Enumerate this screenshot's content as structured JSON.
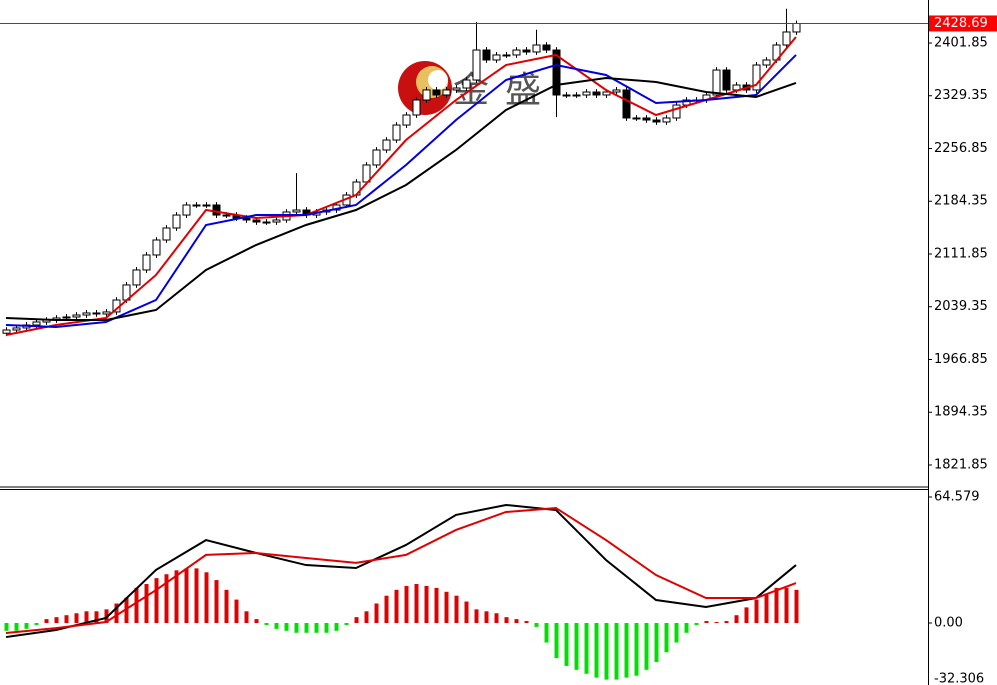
{
  "chart_data": [
    {
      "type": "candlestick",
      "watermark": "金盛",
      "open": [
        2003.0,
        2007.4,
        2010.2,
        2014.3,
        2018.4,
        2021.1,
        2023.9,
        2025.3,
        2028.0,
        2030.8,
        2029.4,
        2032.2,
        2048.6,
        2069.3,
        2089.9,
        2110.5,
        2131.1,
        2147.6,
        2165.4,
        2179.2,
        2179.2,
        2179.2,
        2165.4,
        2165.4,
        2161.3,
        2158.6,
        2155.8,
        2155.8,
        2158.6,
        2169.6,
        2172.3,
        2165.4,
        2169.6,
        2172.3,
        2179.2,
        2192.9,
        2210.8,
        2234.2,
        2254.8,
        2268.5,
        2289.1,
        2302.9,
        2323.5,
        2337.3,
        2330.4,
        2337.3,
        2340.0,
        2351.0,
        2392.2,
        2378.5,
        2385.4,
        2385.4,
        2392.2,
        2389.5,
        2399.1,
        2392.2,
        2330.4,
        2330.4,
        2330.4,
        2334.5,
        2330.4,
        2334.5,
        2337.3,
        2298.8,
        2298.8,
        2296.0,
        2293.3,
        2298.8,
        2316.6,
        2323.5,
        2323.5,
        2330.4,
        2364.7,
        2337.3,
        2344.1,
        2337.3,
        2371.6,
        2378.5,
        2399.1,
        2417.0
      ],
      "high": [
        2011.4,
        2014.2,
        2018.3,
        2022.4,
        2025.1,
        2027.9,
        2029.3,
        2032.0,
        2034.8,
        2034.8,
        2036.2,
        2052.6,
        2073.3,
        2093.9,
        2114.5,
        2135.1,
        2151.6,
        2169.4,
        2183.2,
        2183.2,
        2183.2,
        2183.2,
        2169.4,
        2169.4,
        2165.3,
        2162.6,
        2159.8,
        2162.6,
        2173.6,
        2223.0,
        2176.3,
        2173.6,
        2176.3,
        2183.2,
        2196.9,
        2214.8,
        2238.2,
        2258.8,
        2272.5,
        2293.1,
        2306.9,
        2327.5,
        2341.3,
        2341.3,
        2341.3,
        2344.0,
        2355.0,
        2430.7,
        2396.2,
        2389.4,
        2389.4,
        2396.2,
        2396.2,
        2420.0,
        2403.1,
        2396.2,
        2334.4,
        2334.4,
        2338.5,
        2338.5,
        2338.5,
        2341.3,
        2341.3,
        2302.8,
        2302.8,
        2300.0,
        2302.8,
        2320.6,
        2327.5,
        2327.5,
        2334.4,
        2368.7,
        2368.7,
        2348.1,
        2348.1,
        2375.6,
        2382.5,
        2403.1,
        2449.0,
        2432.7
      ],
      "low": [
        1999.0,
        2003.4,
        2006.2,
        2010.3,
        2014.4,
        2017.1,
        2019.9,
        2021.3,
        2024.0,
        2025.4,
        2025.4,
        2028.2,
        2044.6,
        2065.3,
        2085.9,
        2106.5,
        2127.1,
        2143.6,
        2161.4,
        2175.2,
        2175.2,
        2161.4,
        2161.4,
        2157.3,
        2154.6,
        2151.8,
        2151.8,
        2151.8,
        2154.6,
        2165.6,
        2161.4,
        2161.4,
        2165.6,
        2168.3,
        2175.2,
        2188.9,
        2206.8,
        2230.2,
        2250.8,
        2264.5,
        2285.1,
        2298.9,
        2319.5,
        2326.4,
        2326.4,
        2333.3,
        2336.0,
        2347.0,
        2374.5,
        2374.5,
        2381.4,
        2381.4,
        2385.5,
        2385.5,
        2388.2,
        2300.0,
        2326.4,
        2326.4,
        2326.4,
        2326.4,
        2326.4,
        2330.5,
        2294.8,
        2294.8,
        2292.0,
        2289.3,
        2289.3,
        2294.8,
        2312.6,
        2319.5,
        2319.5,
        2326.4,
        2333.3,
        2333.3,
        2333.3,
        2333.3,
        2367.6,
        2374.5,
        2395.1,
        2413.0
      ],
      "close": [
        2007.4,
        2010.2,
        2014.3,
        2018.4,
        2021.1,
        2023.9,
        2025.3,
        2028.0,
        2030.8,
        2029.4,
        2032.2,
        2048.6,
        2069.3,
        2089.9,
        2110.5,
        2131.1,
        2147.6,
        2165.4,
        2179.2,
        2179.2,
        2179.2,
        2165.4,
        2165.4,
        2161.3,
        2158.6,
        2155.8,
        2155.8,
        2158.6,
        2169.6,
        2172.3,
        2165.4,
        2169.6,
        2172.3,
        2179.2,
        2192.9,
        2210.8,
        2234.2,
        2254.8,
        2268.5,
        2289.1,
        2302.9,
        2323.5,
        2337.3,
        2330.4,
        2337.3,
        2340.0,
        2351.0,
        2392.2,
        2378.5,
        2385.4,
        2385.4,
        2392.2,
        2389.5,
        2399.1,
        2392.2,
        2330.4,
        2330.4,
        2330.4,
        2334.5,
        2330.4,
        2334.5,
        2337.3,
        2298.8,
        2298.8,
        2296.0,
        2293.3,
        2298.8,
        2316.6,
        2323.5,
        2323.5,
        2330.4,
        2364.7,
        2337.3,
        2344.1,
        2337.3,
        2371.6,
        2378.5,
        2399.1,
        2417.0,
        2428.69
      ],
      "up_color": "#ffffff",
      "down_color": "#000000",
      "last_price_color": "#ff0000",
      "overlays": [
        {
          "color": "#e00000",
          "x": [
            0,
            5,
            10,
            15,
            20,
            25,
            30,
            35,
            40,
            45,
            50,
            55,
            60,
            65,
            70,
            75,
            79
          ],
          "values": [
            2000.5,
            2014.3,
            2023.9,
            2083.0,
            2172.3,
            2161.3,
            2165.4,
            2192.9,
            2268.5,
            2323.5,
            2371.6,
            2385.4,
            2337.3,
            2302.9,
            2323.5,
            2344.1,
            2410.1
          ]
        },
        {
          "color": "#0000e0",
          "x": [
            0,
            5,
            10,
            15,
            20,
            25,
            30,
            35,
            40,
            45,
            50,
            55,
            60,
            65,
            70,
            75,
            79
          ],
          "values": [
            2014.3,
            2011.5,
            2018.4,
            2048.6,
            2151.7,
            2165.4,
            2165.4,
            2179.2,
            2234.2,
            2296.0,
            2351.0,
            2371.6,
            2357.9,
            2319.4,
            2323.5,
            2330.4,
            2385.4
          ]
        },
        {
          "color": "#000000",
          "x": [
            0,
            5,
            10,
            15,
            20,
            25,
            30,
            35,
            40,
            45,
            50,
            55,
            60,
            65,
            70,
            75,
            79
          ],
          "values": [
            2023.9,
            2021.1,
            2021.1,
            2034.9,
            2089.9,
            2124.2,
            2151.7,
            2172.3,
            2206.7,
            2254.8,
            2309.8,
            2344.1,
            2353.8,
            2348.3,
            2334.5,
            2327.7,
            2346.9
          ]
        }
      ],
      "ylim": [
        1791.6,
        2460.95
      ],
      "yticks": [
        2401.85,
        2329.35,
        2256.85,
        2184.35,
        2111.85,
        2039.35,
        1966.85,
        1894.35,
        1821.85
      ]
    },
    {
      "type": "macd",
      "values": [
        -4,
        -4,
        -3,
        -1,
        2,
        3,
        4,
        5,
        6,
        6,
        7,
        10,
        13,
        18,
        20,
        23,
        25,
        27,
        28,
        28,
        26,
        22,
        17,
        12,
        6,
        2,
        -1,
        -3,
        -4,
        -5,
        -5,
        -5,
        -5,
        -4,
        -1,
        3,
        6,
        10,
        14,
        17,
        19,
        20,
        19,
        18,
        16,
        14,
        11,
        7,
        6,
        5,
        3,
        2,
        1,
        -2,
        -10,
        -18,
        -22,
        -24,
        -26,
        -28,
        -29,
        -29,
        -28,
        -27,
        -24,
        -20,
        -15,
        -10,
        -5,
        -1,
        1,
        0.5,
        1,
        4,
        8,
        12,
        15,
        18,
        18,
        17
      ],
      "pos_color": "#e00000",
      "neg_color": "#00e000",
      "series": [
        {
          "color": "#000000",
          "x": [
            0,
            5,
            10,
            15,
            20,
            25,
            30,
            35,
            40,
            45,
            50,
            55,
            60,
            65,
            70,
            75,
            79
          ],
          "values": [
            -7.2,
            -3.6,
            2.6,
            27.2,
            42.5,
            35.9,
            29.7,
            28.2,
            40.0,
            55.4,
            60.5,
            57.9,
            32.3,
            11.8,
            8.2,
            12.8,
            29.7
          ]
        },
        {
          "color": "#e00000",
          "x": [
            0,
            5,
            10,
            15,
            20,
            25,
            30,
            35,
            40,
            45,
            50,
            55,
            60,
            65,
            70,
            75,
            79
          ],
          "values": [
            -5.1,
            -2.6,
            0.5,
            16.9,
            34.9,
            35.9,
            33.3,
            30.8,
            34.9,
            47.7,
            56.9,
            58.9,
            42.5,
            24.6,
            12.8,
            12.8,
            20.5
          ]
        }
      ],
      "ylim": [
        -31.77,
        68.68
      ],
      "yticks": [
        64.579,
        {
          "value": 0,
          "label": "0.00"
        },
        -32.306
      ]
    }
  ]
}
